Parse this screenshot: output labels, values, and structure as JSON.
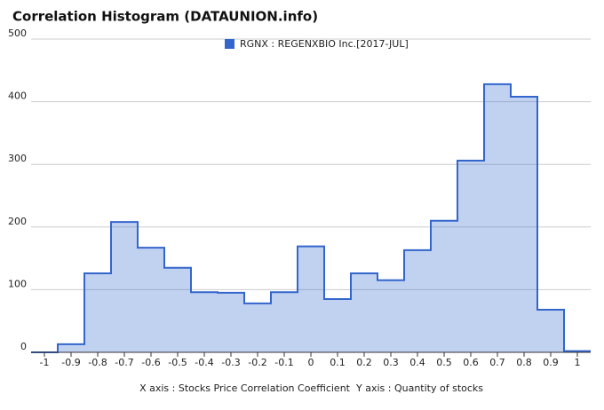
{
  "chart_data": {
    "type": "histogram",
    "title": "Correlation Histogram (DATAUNION.info)",
    "x_label": "X axis : Stocks Price Correlation Coefficient",
    "y_label": "Y axis : Quantity of stocks",
    "bins": [
      -1.05,
      -0.95,
      -0.85,
      -0.75,
      -0.65,
      -0.55,
      -0.45,
      -0.35,
      -0.25,
      -0.15,
      -0.05,
      0.05,
      0.15,
      0.25,
      0.35,
      0.45,
      0.55,
      0.65,
      0.75,
      0.85,
      0.95,
      1.05
    ],
    "series": [
      {
        "name": "RGNX : REGENXBIO Inc.[2017-JUL]",
        "color": "#3366cc",
        "values": [
          0,
          13,
          126,
          208,
          167,
          135,
          96,
          95,
          78,
          96,
          169,
          85,
          126,
          115,
          163,
          210,
          306,
          428,
          408,
          68,
          2
        ]
      }
    ],
    "xlim": [
      -1.05,
      1.05
    ],
    "xticks": [
      -1,
      -0.9,
      -0.8,
      -0.7,
      -0.6,
      -0.5,
      -0.4,
      -0.3,
      -0.2,
      -0.1,
      0,
      0.1,
      0.2,
      0.3,
      0.4,
      0.5,
      0.6,
      0.7,
      0.8,
      0.9,
      1
    ],
    "ylim": [
      0,
      500
    ],
    "yticks": [
      0,
      100,
      200,
      300,
      400,
      500
    ],
    "grid": true
  }
}
